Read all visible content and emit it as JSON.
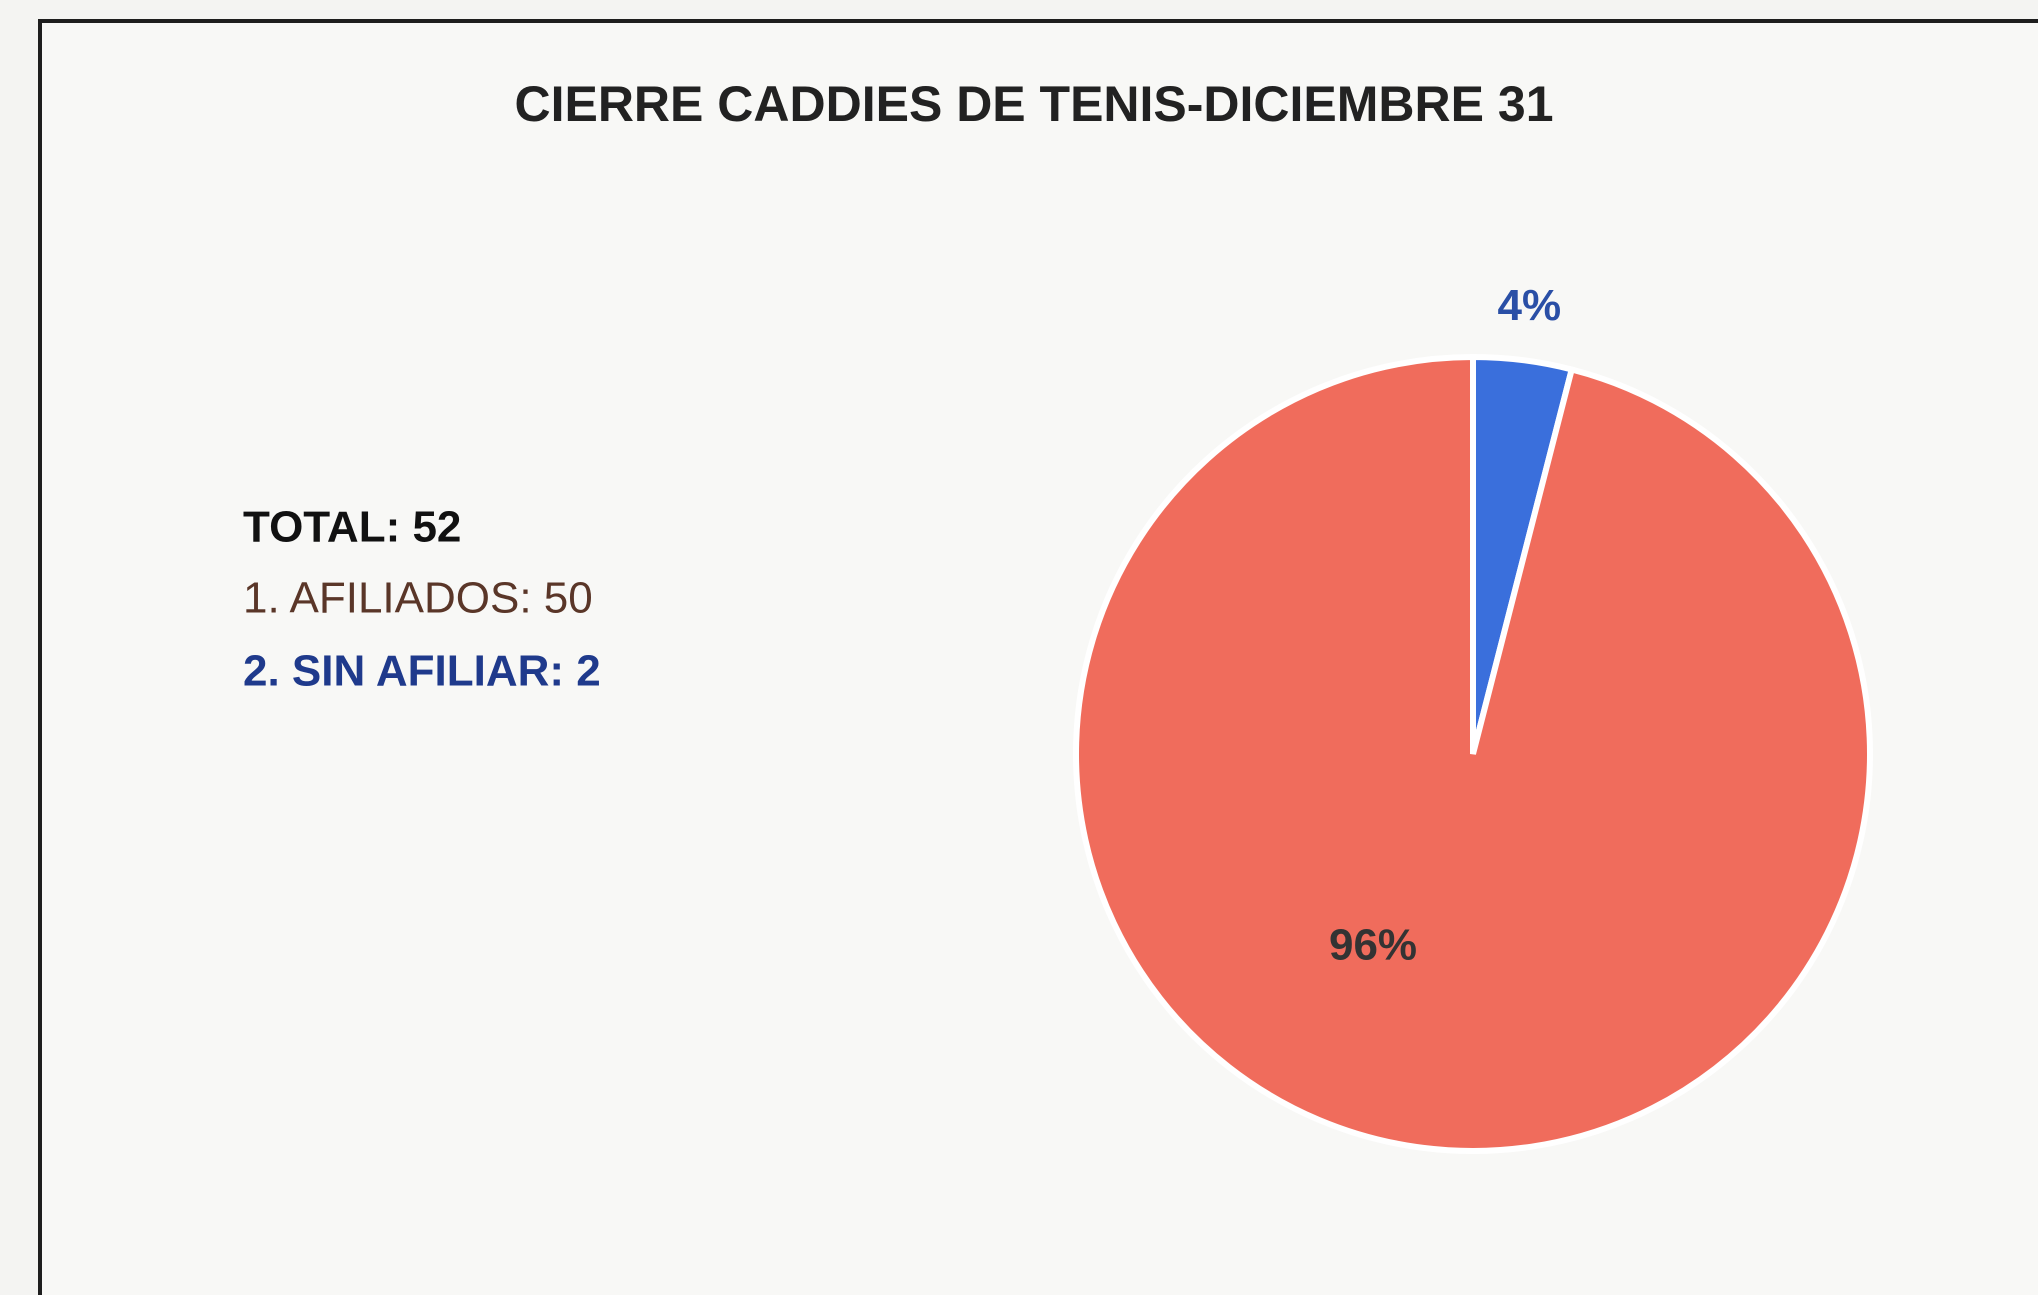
{
  "chart_data": {
    "type": "pie",
    "title": "CIERRE CADDIES DE TENIS-DICIEMBRE 31",
    "annotations": [
      "TOTAL:  52",
      "1. AFILIADOS: 50",
      "2. SIN AFILIAR: 2"
    ],
    "values": [
      4,
      96
    ],
    "value_labels": [
      "4%",
      "96%"
    ],
    "colors": [
      "#3a6fdc",
      "#f06c5c"
    ]
  }
}
